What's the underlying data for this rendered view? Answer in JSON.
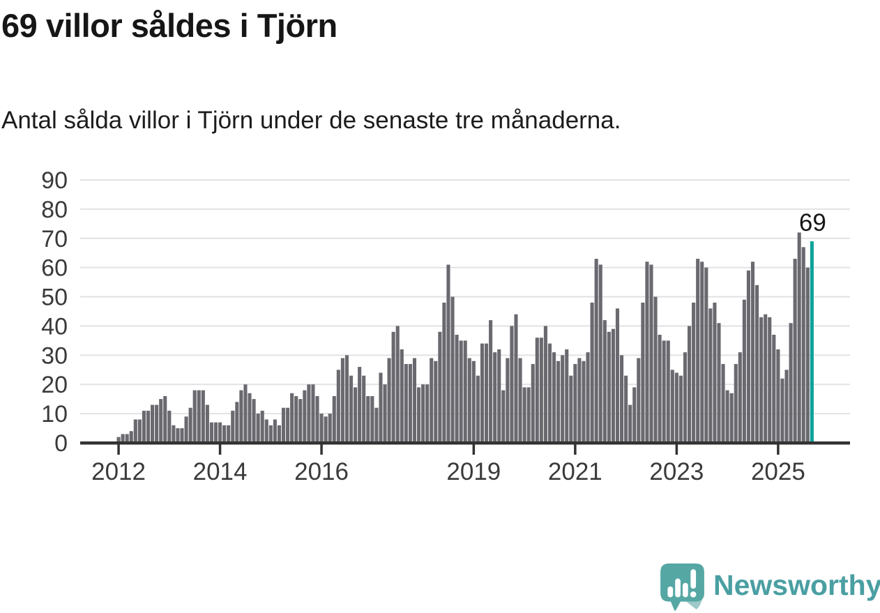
{
  "header": {
    "title": "69 villor såldes i Tjörn",
    "subtitle": "Antal sålda villor i Tjörn under de senaste tre månaderna."
  },
  "chart_data": {
    "type": "bar",
    "title": "Antal sålda villor i Tjörn under de senaste tre månaderna",
    "frequency": "monthly",
    "start_year": 2012,
    "start_month": 1,
    "values": [
      2,
      3,
      3,
      4,
      8,
      8,
      11,
      11,
      13,
      13,
      15,
      16,
      11,
      6,
      5,
      5,
      9,
      12,
      18,
      18,
      18,
      13,
      7,
      7,
      7,
      6,
      6,
      11,
      14,
      18,
      20,
      17,
      15,
      10,
      11,
      8,
      6,
      8,
      6,
      12,
      12,
      17,
      16,
      15,
      18,
      20,
      20,
      16,
      10,
      9,
      10,
      16,
      25,
      29,
      30,
      23,
      19,
      26,
      23,
      16,
      16,
      12,
      24,
      20,
      29,
      38,
      40,
      32,
      27,
      27,
      29,
      19,
      20,
      20,
      29,
      28,
      38,
      48,
      61,
      50,
      37,
      35,
      35,
      29,
      28,
      23,
      34,
      34,
      42,
      31,
      32,
      18,
      29,
      40,
      44,
      29,
      19,
      19,
      27,
      36,
      36,
      40,
      34,
      31,
      28,
      30,
      32,
      23,
      27,
      29,
      28,
      31,
      48,
      63,
      61,
      42,
      38,
      39,
      46,
      30,
      23,
      13,
      19,
      29,
      48,
      62,
      61,
      50,
      37,
      35,
      35,
      25,
      24,
      23,
      31,
      40,
      48,
      63,
      62,
      60,
      46,
      48,
      41,
      27,
      18,
      17,
      27,
      31,
      49,
      59,
      62,
      54,
      43,
      44,
      43,
      37,
      32,
      22,
      25,
      41,
      63,
      72,
      67,
      60,
      69
    ],
    "highlight_index": 164,
    "annotation": {
      "text": "69",
      "value": 69
    },
    "ylim": [
      0,
      90
    ],
    "y_ticks": [
      0,
      10,
      20,
      30,
      40,
      50,
      60,
      70,
      80,
      90
    ],
    "x_tick_years": [
      2012,
      2014,
      2016,
      2019,
      2021,
      2023,
      2025
    ],
    "grid": true,
    "legend_position": "none",
    "colors": {
      "bar": "#69696f",
      "highlight": "#0fa29a",
      "axis": "#323232",
      "grid": "#e2e2e4",
      "tick_label": "#3a3a3a",
      "annotation": "#161616"
    }
  },
  "footer": {
    "brand": "Newsworthy",
    "logo_icon": "newsworthy-speech-bubble-chart-icon",
    "brand_color": "#4A9FA2",
    "icon_color": "#55A7A4"
  }
}
